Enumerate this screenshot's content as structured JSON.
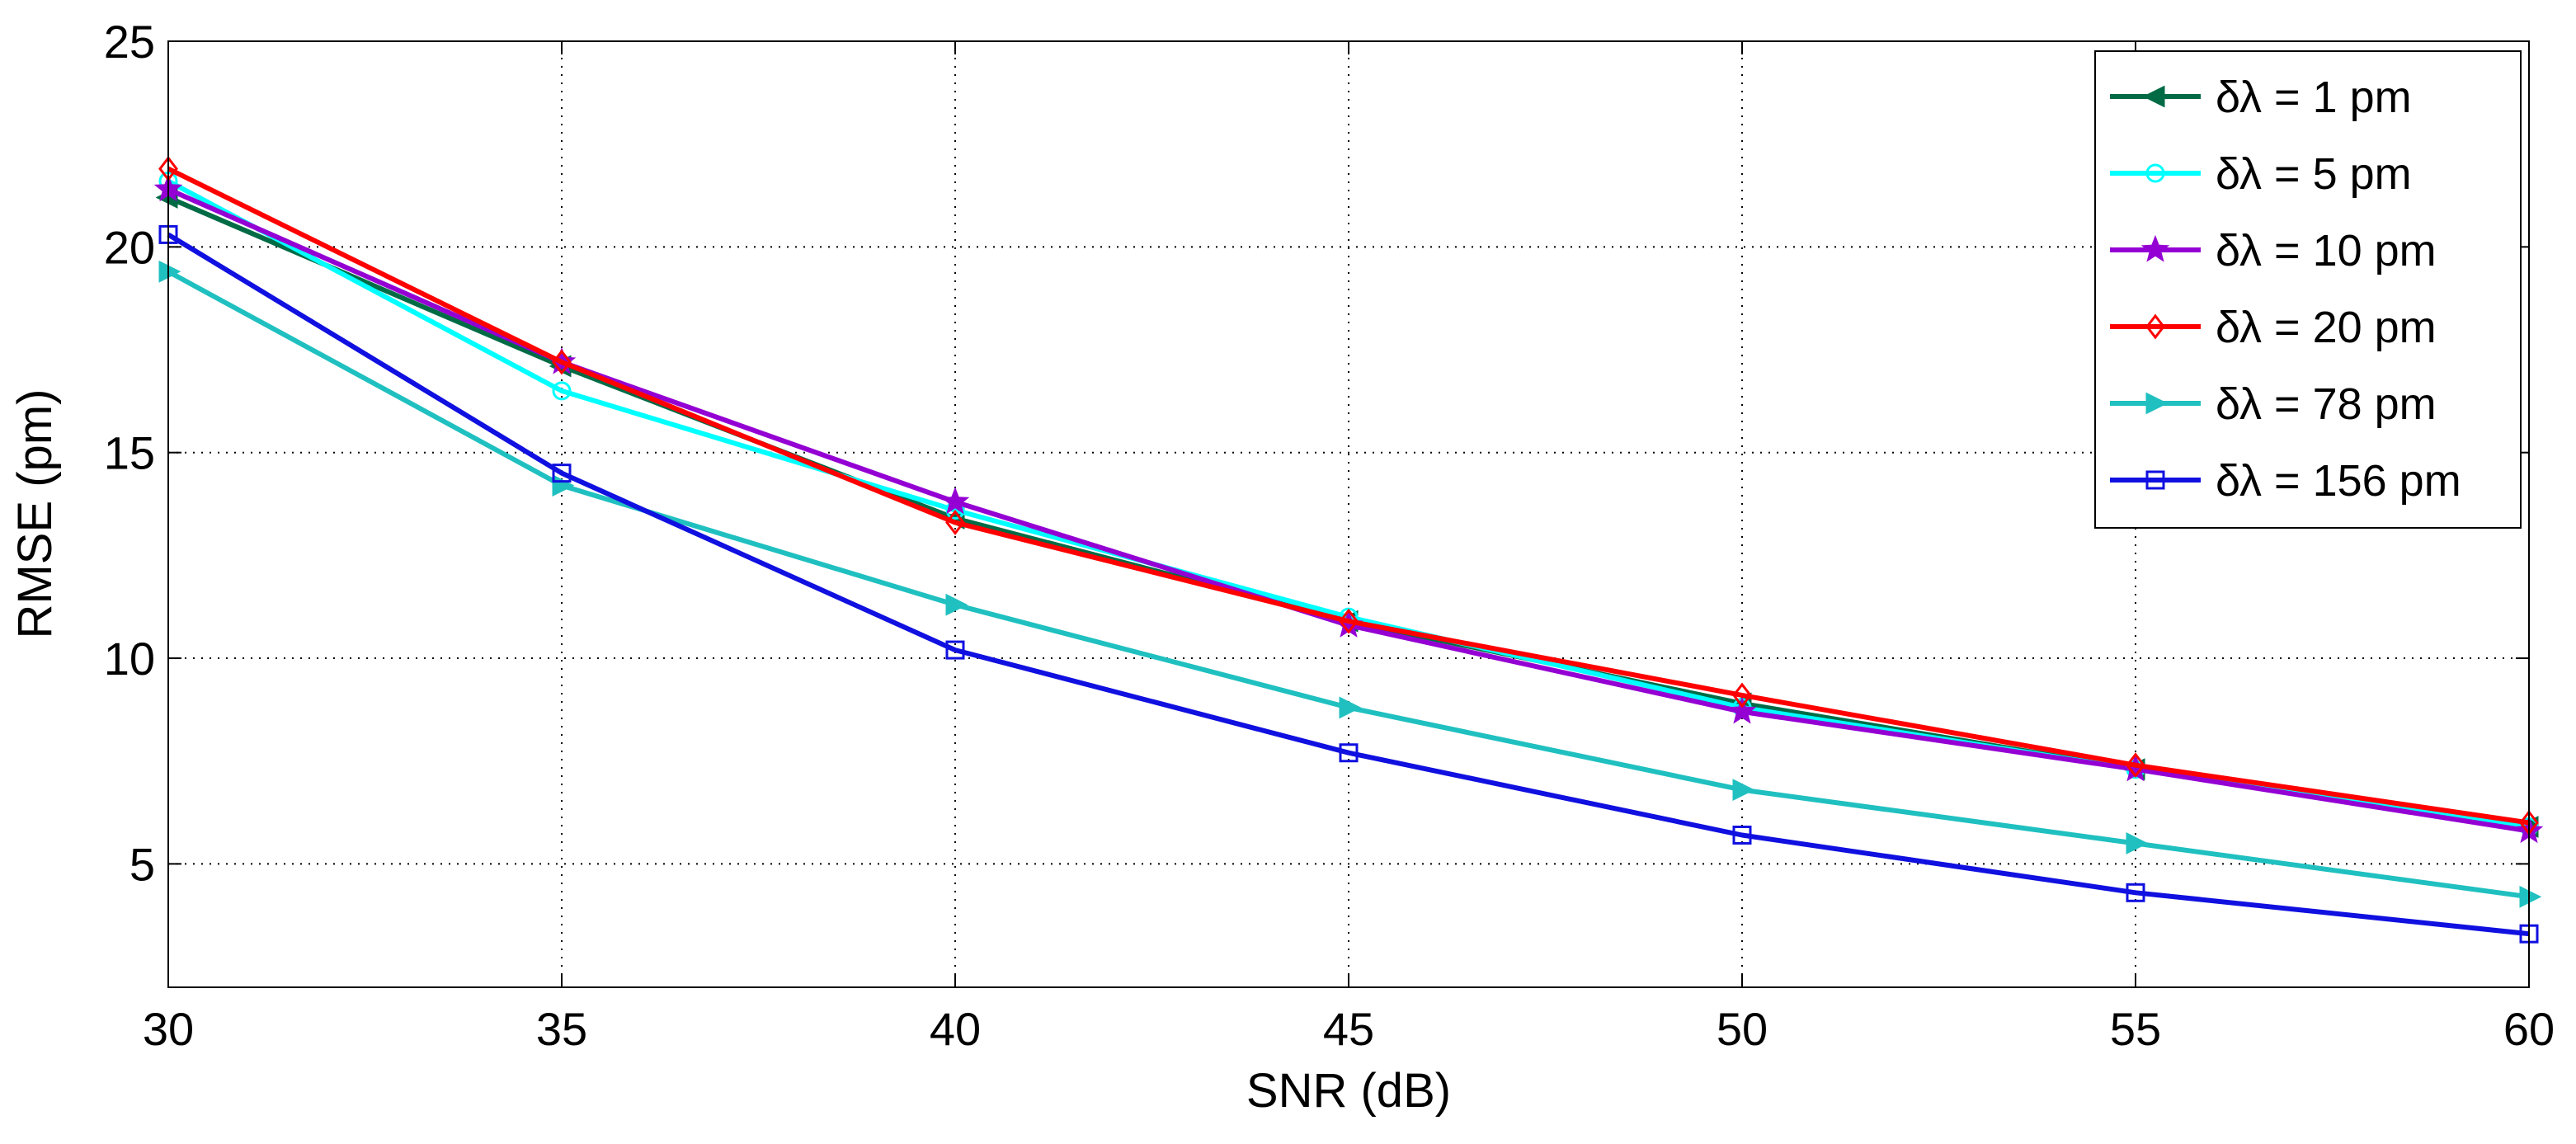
{
  "chart_data": {
    "type": "line",
    "title": "",
    "xlabel": "SNR (dB)",
    "ylabel": "RMSE (pm)",
    "xlim": [
      30,
      60
    ],
    "ylim": [
      2,
      25
    ],
    "xticks": [
      30,
      35,
      40,
      45,
      50,
      55,
      60
    ],
    "yticks": [
      5,
      10,
      15,
      20,
      25
    ],
    "grid": true,
    "legend_position": "top-right",
    "x": [
      30,
      35,
      40,
      45,
      50,
      55,
      60
    ],
    "series": [
      {
        "name": "δλ = 1 pm",
        "color": "#006b45",
        "marker": "triangle-left",
        "values": [
          21.2,
          17.1,
          13.4,
          10.9,
          8.9,
          7.3,
          5.9
        ]
      },
      {
        "name": "δλ = 5 pm",
        "color": "#00ffff",
        "marker": "circle",
        "values": [
          21.6,
          16.5,
          13.6,
          11.0,
          8.8,
          7.3,
          5.9
        ]
      },
      {
        "name": "δλ = 10 pm",
        "color": "#9400d3",
        "marker": "star",
        "values": [
          21.4,
          17.2,
          13.8,
          10.8,
          8.7,
          7.3,
          5.8
        ]
      },
      {
        "name": "δλ = 20 pm",
        "color": "#ff0000",
        "marker": "diamond",
        "values": [
          21.9,
          17.2,
          13.3,
          10.9,
          9.1,
          7.4,
          6.0
        ]
      },
      {
        "name": "δλ = 78 pm",
        "color": "#20c0c0",
        "marker": "triangle-right",
        "values": [
          19.4,
          14.2,
          11.3,
          8.8,
          6.8,
          5.5,
          4.2
        ]
      },
      {
        "name": "δλ = 156 pm",
        "color": "#1010e0",
        "marker": "square",
        "values": [
          20.3,
          14.5,
          10.2,
          7.7,
          5.7,
          4.3,
          3.3
        ]
      }
    ]
  }
}
